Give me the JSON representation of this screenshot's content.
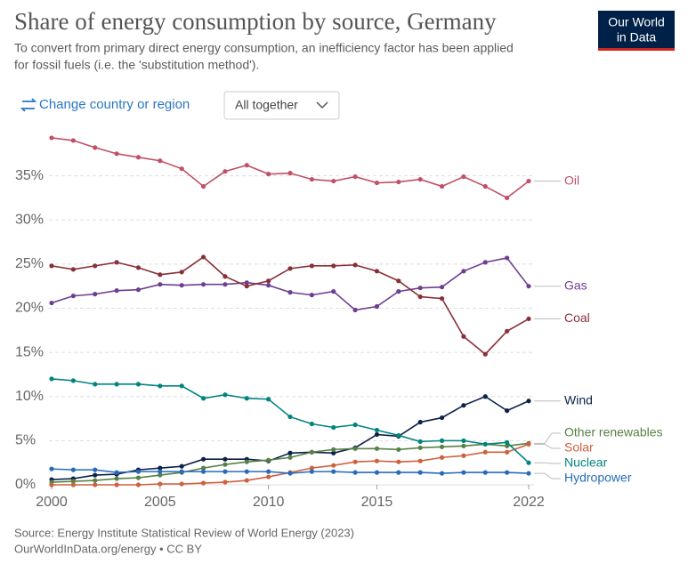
{
  "chart_data": {
    "type": "line",
    "title": "Share of energy consumption by source, Germany",
    "subtitle": [
      "To convert from primary direct energy consumption, an inefficiency factor has been applied",
      "for fossil fuels (i.e. the 'substitution method')."
    ],
    "x": [
      2000,
      2001,
      2002,
      2003,
      2004,
      2005,
      2006,
      2007,
      2008,
      2009,
      2010,
      2011,
      2012,
      2013,
      2014,
      2015,
      2016,
      2017,
      2018,
      2019,
      2020,
      2021,
      2022
    ],
    "xlim": [
      2000,
      2022
    ],
    "xticks": [
      2000,
      2005,
      2010,
      2015,
      2022
    ],
    "ylim": [
      0,
      40
    ],
    "yticks": [
      {
        "value": 0,
        "label": "0%"
      },
      {
        "value": 5,
        "label": "5%"
      },
      {
        "value": 10,
        "label": "10%"
      },
      {
        "value": 15,
        "label": "15%"
      },
      {
        "value": 20,
        "label": "20%"
      },
      {
        "value": 25,
        "label": "25%"
      },
      {
        "value": 30,
        "label": "30%"
      },
      {
        "value": 35,
        "label": "35%"
      }
    ],
    "grid": true,
    "series": [
      {
        "name": "Oil",
        "color": "#c05065",
        "values": [
          39.3,
          39.0,
          38.2,
          37.5,
          37.1,
          36.7,
          35.8,
          33.8,
          35.5,
          36.2,
          35.2,
          35.3,
          34.6,
          34.4,
          34.9,
          34.2,
          34.3,
          34.6,
          33.8,
          34.9,
          33.8,
          32.5,
          34.4
        ]
      },
      {
        "name": "Gas",
        "color": "#6d3e91",
        "values": [
          20.6,
          21.4,
          21.6,
          22.0,
          22.1,
          22.7,
          22.6,
          22.7,
          22.7,
          22.9,
          22.6,
          21.8,
          21.5,
          21.9,
          19.8,
          20.2,
          21.9,
          22.3,
          22.4,
          24.2,
          25.2,
          25.7,
          22.5
        ]
      },
      {
        "name": "Coal",
        "color": "#883039",
        "values": [
          24.8,
          24.4,
          24.8,
          25.2,
          24.6,
          23.8,
          24.1,
          25.8,
          23.6,
          22.5,
          23.1,
          24.5,
          24.8,
          24.8,
          24.9,
          24.2,
          23.1,
          21.3,
          21.1,
          16.8,
          14.8,
          17.4,
          18.8
        ]
      },
      {
        "name": "Wind",
        "color": "#0c2249",
        "values": [
          0.6,
          0.7,
          1.1,
          1.2,
          1.7,
          1.9,
          2.1,
          2.9,
          2.9,
          2.9,
          2.7,
          3.6,
          3.7,
          3.6,
          4.2,
          5.7,
          5.5,
          7.1,
          7.6,
          9.0,
          10.0,
          8.4,
          9.5
        ]
      },
      {
        "name": "Other renewables",
        "color": "#578145",
        "values": [
          0.3,
          0.4,
          0.5,
          0.7,
          0.8,
          1.1,
          1.4,
          1.9,
          2.3,
          2.6,
          2.8,
          3.1,
          3.7,
          4.0,
          4.1,
          4.1,
          4.0,
          4.2,
          4.3,
          4.4,
          4.6,
          4.4,
          4.7
        ]
      },
      {
        "name": "Solar",
        "color": "#d0603e",
        "values": [
          0,
          0,
          0,
          0,
          0,
          0.1,
          0.1,
          0.2,
          0.3,
          0.5,
          0.9,
          1.4,
          1.9,
          2.2,
          2.6,
          2.7,
          2.6,
          2.7,
          3.1,
          3.3,
          3.7,
          3.7,
          4.6
        ]
      },
      {
        "name": "Nuclear",
        "color": "#00847e",
        "values": [
          12.0,
          11.8,
          11.4,
          11.4,
          11.4,
          11.2,
          11.2,
          9.8,
          10.2,
          9.8,
          9.7,
          7.7,
          6.9,
          6.5,
          6.8,
          6.2,
          5.6,
          4.9,
          5.0,
          5.0,
          4.6,
          4.8,
          2.5
        ]
      },
      {
        "name": "Hydropower",
        "color": "#286bbb",
        "values": [
          1.8,
          1.7,
          1.7,
          1.4,
          1.5,
          1.5,
          1.5,
          1.5,
          1.5,
          1.5,
          1.5,
          1.3,
          1.5,
          1.5,
          1.4,
          1.4,
          1.4,
          1.4,
          1.3,
          1.4,
          1.4,
          1.4,
          1.3
        ]
      }
    ]
  },
  "logo": [
    "Our World",
    "in Data"
  ],
  "controls": {
    "change": "Change country or region",
    "select": "All together"
  },
  "footer": {
    "source": "Source: Energy Institute Statistical Review of World Energy (2023)",
    "license": "OurWorldInData.org/energy • CC BY"
  }
}
